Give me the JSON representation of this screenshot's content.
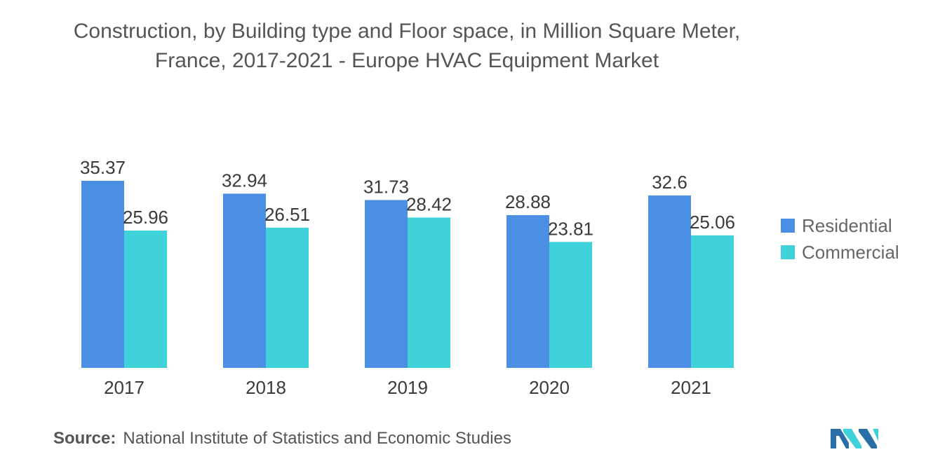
{
  "title": {
    "line1": "Construction, by Building type and Floor space, in Million Square Meter,",
    "line2": "France, 2017-2021 - Europe HVAC Equipment Market"
  },
  "source": {
    "label": "Source:",
    "text": "National Institute of Statistics and Economic Studies"
  },
  "logo": {
    "icon": "mordor-intelligence-logo",
    "colors": [
      "#2a6ea8",
      "#3fd1d8"
    ]
  },
  "colors": {
    "Residential": "#4a8fe3",
    "Commercial": "#40d2da"
  },
  "chart_data": {
    "type": "bar",
    "title": "Construction, by Building type and Floor space, in Million Square Meter, France, 2017-2021 - Europe HVAC Equipment Market",
    "categories": [
      "2017",
      "2018",
      "2019",
      "2020",
      "2021"
    ],
    "series": [
      {
        "name": "Residential",
        "values": [
          35.37,
          32.94,
          31.73,
          28.88,
          32.6
        ],
        "labels": [
          "35.37",
          "32.94",
          "31.73",
          "28.88",
          "32.6"
        ]
      },
      {
        "name": "Commercial",
        "values": [
          25.96,
          26.51,
          28.42,
          23.81,
          25.06
        ],
        "labels": [
          "25.96",
          "26.51",
          "28.42",
          "23.81",
          "25.06"
        ]
      }
    ],
    "xlabel": "",
    "ylabel": "",
    "ylim": [
      0,
      40
    ],
    "grid": false,
    "legend": "right"
  }
}
